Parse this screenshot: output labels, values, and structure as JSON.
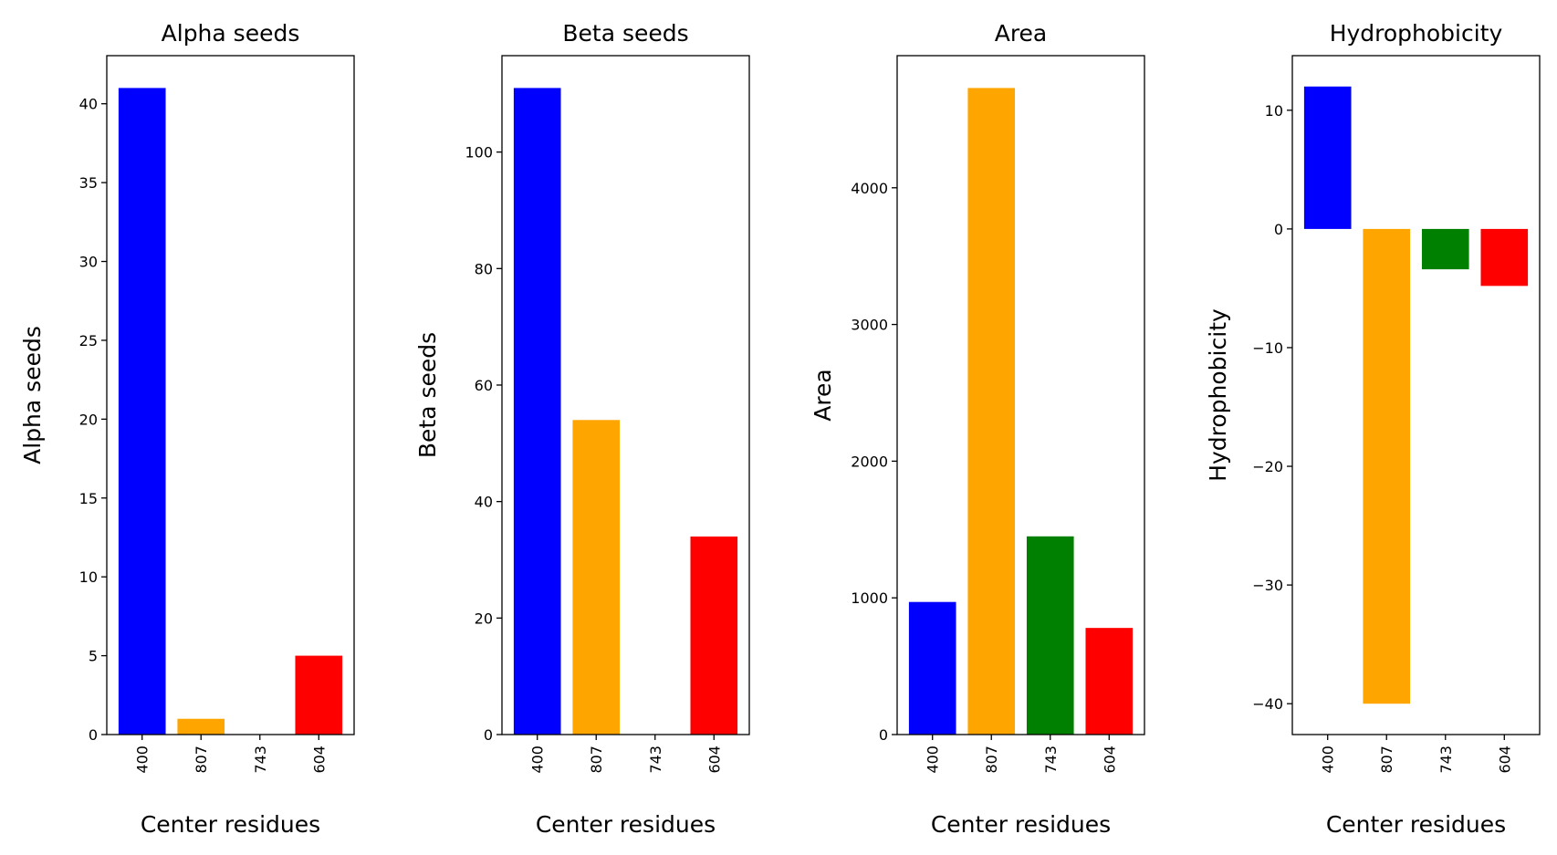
{
  "chart_data": [
    {
      "type": "bar",
      "title": "Alpha seeds",
      "xlabel": "Center residues",
      "ylabel": "Alpha seeds",
      "categories": [
        "400",
        "807",
        "743",
        "604"
      ],
      "values": [
        41,
        1,
        0,
        5
      ],
      "colors": [
        "#0000ff",
        "#ffa500",
        "#008000",
        "#ff0000"
      ],
      "ylim": [
        0,
        43.05
      ],
      "yticks": [
        0,
        5,
        10,
        15,
        20,
        25,
        30,
        35,
        40
      ],
      "grid": false
    },
    {
      "type": "bar",
      "title": "Beta seeds",
      "xlabel": "Center residues",
      "ylabel": "Beta seeds",
      "categories": [
        "400",
        "807",
        "743",
        "604"
      ],
      "values": [
        111,
        54,
        0,
        34
      ],
      "colors": [
        "#0000ff",
        "#ffa500",
        "#008000",
        "#ff0000"
      ],
      "ylim": [
        0,
        116.55
      ],
      "yticks": [
        0,
        20,
        40,
        60,
        80,
        100
      ],
      "grid": false
    },
    {
      "type": "bar",
      "title": "Area",
      "xlabel": "Center residues",
      "ylabel": "Area",
      "categories": [
        "400",
        "807",
        "743",
        "604"
      ],
      "values": [
        970,
        4730,
        1450,
        780
      ],
      "colors": [
        "#0000ff",
        "#ffa500",
        "#008000",
        "#ff0000"
      ],
      "ylim": [
        0,
        4966.5
      ],
      "yticks": [
        0,
        1000,
        2000,
        3000,
        4000
      ],
      "grid": false
    },
    {
      "type": "bar",
      "title": "Hydrophobicity",
      "xlabel": "Center residues",
      "ylabel": "Hydrophobicity",
      "categories": [
        "400",
        "807",
        "743",
        "604"
      ],
      "values": [
        12,
        -40,
        -3.4,
        -4.8
      ],
      "colors": [
        "#0000ff",
        "#ffa500",
        "#008000",
        "#ff0000"
      ],
      "ylim": [
        -42.6,
        14.6
      ],
      "yticks": [
        -40,
        -30,
        -20,
        -10,
        0,
        10
      ],
      "grid": false
    }
  ]
}
